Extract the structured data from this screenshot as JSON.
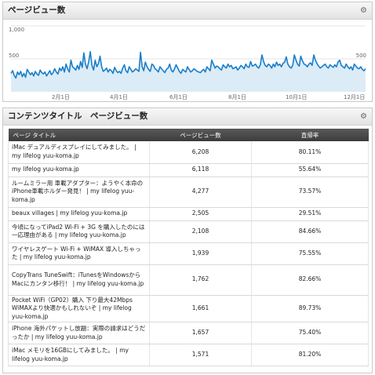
{
  "pageviews_panel": {
    "title": "ページビュー数",
    "icon": "gear-icon"
  },
  "chart_data": {
    "type": "area",
    "title": "",
    "ylim": [
      0,
      1000
    ],
    "y_ticks": [
      "1,000",
      "500",
      "500"
    ],
    "x_ticks": [
      "2月1日",
      "4月1日",
      "6月1日",
      "8月1日",
      "10月1日",
      "12月1日"
    ],
    "line_color": "#1a7ec9",
    "fill_color": "#dcecf7",
    "series": [
      {
        "values": [
          280,
          320,
          250,
          210,
          300,
          260,
          310,
          230,
          280,
          220,
          340,
          300,
          260,
          290,
          240,
          310,
          270,
          250,
          330,
          290,
          270,
          300,
          240,
          280,
          320,
          260,
          290,
          350,
          300,
          270,
          360,
          320,
          380,
          300,
          420,
          350,
          300,
          480,
          380,
          360,
          330,
          400,
          340,
          460,
          370,
          590,
          420,
          350,
          460,
          610,
          400,
          330,
          480,
          380,
          430,
          540,
          380,
          310,
          330,
          360,
          300,
          340,
          320,
          280,
          370,
          320,
          290,
          310,
          280,
          360,
          410,
          320,
          290,
          380,
          340,
          300,
          320,
          350,
          330,
          310,
          600,
          380,
          320,
          450,
          380,
          340,
          310,
          420,
          400,
          350,
          330,
          300,
          380,
          350,
          320,
          290,
          340,
          360,
          420,
          330,
          300,
          350,
          410,
          360,
          310,
          280,
          340,
          320,
          300,
          380,
          340,
          300,
          320,
          350,
          330,
          310,
          300,
          290,
          320,
          340,
          300,
          380,
          350,
          320,
          480,
          420,
          360,
          390,
          380,
          350,
          330,
          410,
          380,
          360,
          420,
          380,
          400,
          350,
          360,
          380,
          330,
          360,
          400,
          380,
          350,
          420,
          380,
          370,
          460,
          390,
          400,
          420,
          380,
          360,
          410,
          560,
          460,
          400,
          380,
          420,
          400,
          360,
          420,
          380,
          450,
          400,
          420,
          380,
          430,
          450,
          530,
          420,
          380,
          360,
          400,
          560,
          480,
          420,
          390,
          540,
          470,
          420,
          410,
          380,
          420,
          440,
          400,
          560,
          480,
          430,
          390,
          360,
          380,
          400,
          420,
          380,
          360,
          410,
          390,
          370,
          410,
          380,
          450,
          480,
          400,
          380,
          360,
          420,
          380,
          350,
          380,
          330,
          420,
          390,
          360,
          350,
          380,
          340,
          320,
          350
        ]
      }
    ]
  },
  "content_panel": {
    "title": "コンテンツタイトル　ページビュー数",
    "icon": "gear-icon"
  },
  "table": {
    "headers": {
      "title": "ページ タイトル",
      "pageviews": "ページビュー数",
      "bounce_rate": "直帰率"
    },
    "rows": [
      {
        "title": "iMac デュアルディスプレイにしてみました。 | my lifelog yuu-koma.jp",
        "pageviews": "6,208",
        "bounce_rate": "80.11%"
      },
      {
        "title": "my lifelog yuu-koma.jp",
        "pageviews": "6,118",
        "bounce_rate": "55.64%"
      },
      {
        "title": "ルームミラー用 車載アダプター：ようやく本命のiPhone車載ホルダー発見！ | my lifelog yuu-koma.jp",
        "pageviews": "4,277",
        "bounce_rate": "73.57%"
      },
      {
        "title": "beaux villages | my lifelog yuu-koma.jp",
        "pageviews": "2,505",
        "bounce_rate": "29.51%"
      },
      {
        "title": "今頃になってiPad2 Wi-Fi + 3G を購入したのには一応理由がある | my lifelog yuu-koma.jp",
        "pageviews": "2,108",
        "bounce_rate": "84.66%"
      },
      {
        "title": "ワイヤレスゲート Wi-Fi + WiMAX 導入しちゃった | my lifelog yuu-koma.jp",
        "pageviews": "1,939",
        "bounce_rate": "75.55%"
      },
      {
        "title": "CopyTrans TuneSwift：iTunesをWindowsからMacにカンタン移行！ | my lifelog yuu-koma.jp",
        "pageviews": "1,762",
        "bounce_rate": "82.66%"
      },
      {
        "title": "Pocket WiFi（GP02）購入 下り最大42Mbps WiMAXより快適かもしれないぞ | my lifelog yuu-koma.jp",
        "pageviews": "1,661",
        "bounce_rate": "89.73%"
      },
      {
        "title": "iPhone 海外パケットし放題：実際の請求はどうだったか | my lifelog yuu-koma.jp",
        "pageviews": "1,657",
        "bounce_rate": "75.40%"
      },
      {
        "title": "iMac メモリを16GBにしてみました。 | my lifelog yuu-koma.jp",
        "pageviews": "1,571",
        "bounce_rate": "81.20%"
      }
    ]
  }
}
